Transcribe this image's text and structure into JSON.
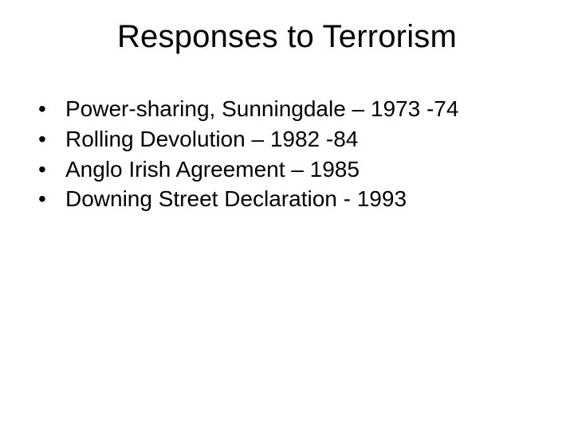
{
  "background_color": "#ffffff",
  "text_color": "#000000",
  "title": {
    "text": "Responses to Terrorism",
    "fontsize": 40,
    "font_weight": 400
  },
  "bullets": {
    "marker": "•",
    "fontsize": 28,
    "items": [
      {
        "label": "Power-sharing, Sunningdale – 1973 -74"
      },
      {
        "label": "Rolling Devolution – 1982 -84"
      },
      {
        "label": "Anglo Irish Agreement – 1985"
      },
      {
        "label": "Downing Street Declaration - 1993"
      }
    ]
  }
}
